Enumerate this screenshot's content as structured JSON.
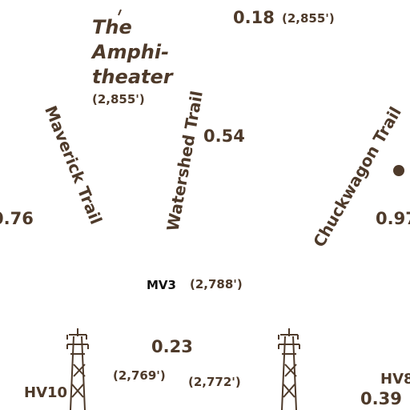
{
  "colors": {
    "ink": "#4e3a2a",
    "black": "#111111",
    "background": "#ffffff"
  },
  "feature": {
    "name_lines": [
      "The",
      "Amphi-",
      "theater"
    ],
    "elevation": "(2,855')"
  },
  "trails": {
    "maverick": "Maverick Trail",
    "watershed": "Watershed Trail",
    "chuckwagon": "Chuckwagon Trail"
  },
  "distances": {
    "top": "0.18",
    "watershed": "0.54",
    "left_edge": "0.76",
    "right_edge": "0.97",
    "lower": "0.23",
    "lower_right": "0.39"
  },
  "elevations": {
    "top": "(2,855')",
    "mv3": "(2,788')",
    "lower_left": "(2,769')",
    "lower_mid": "(2,772')"
  },
  "junctions": {
    "mv3": "MV3",
    "hv10": "HV10",
    "hv8": "HV8"
  },
  "icons": [
    "power-tower-icon",
    "power-tower-icon",
    "trail-junction-dot-icon"
  ]
}
